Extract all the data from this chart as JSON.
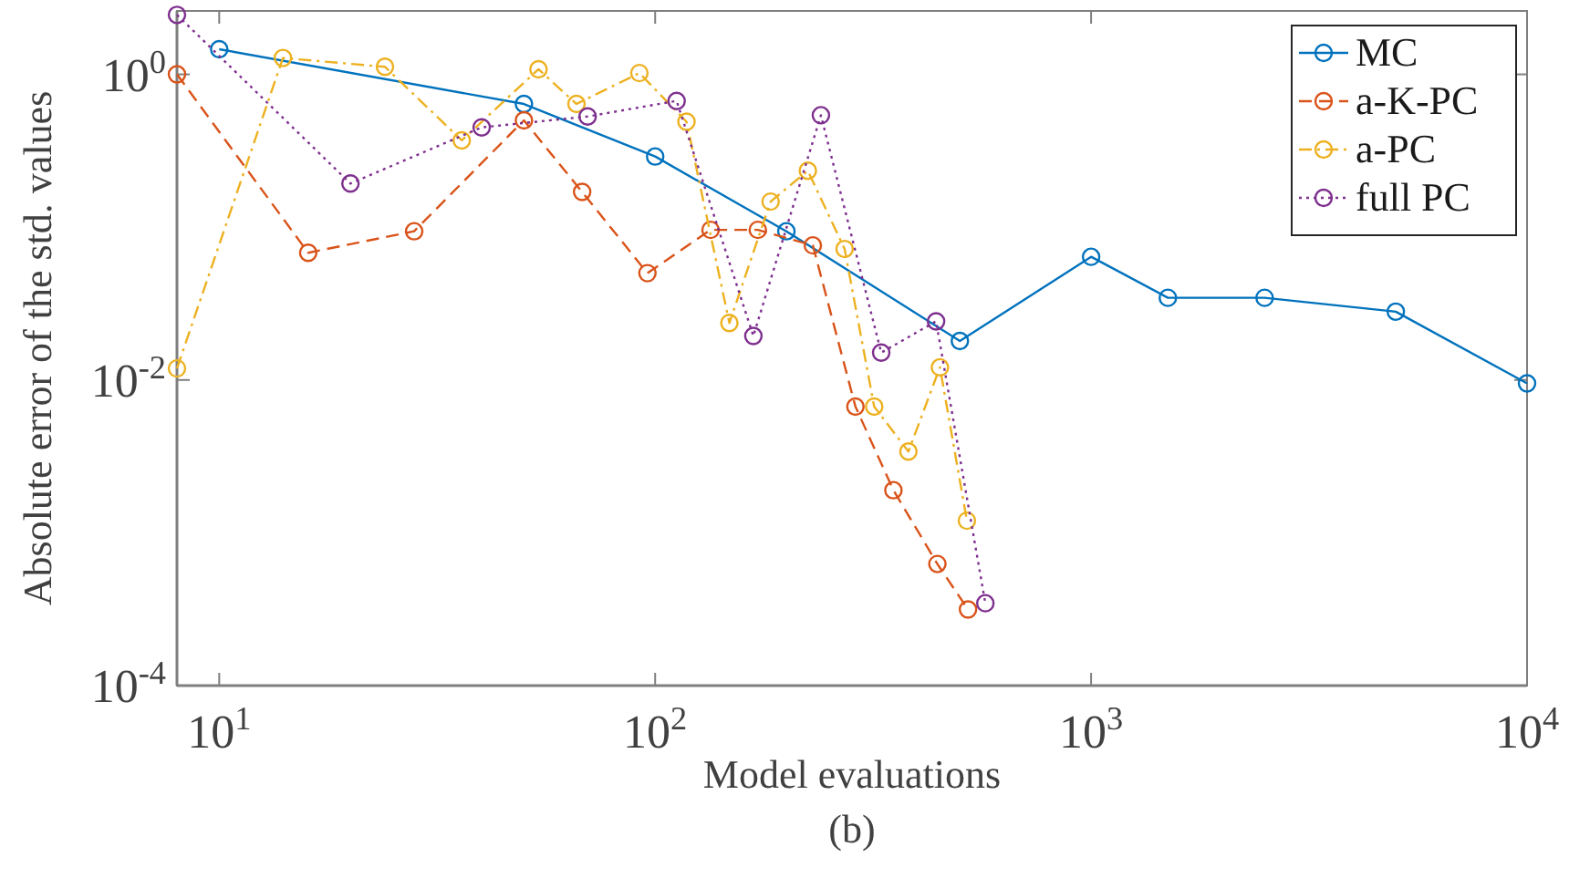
{
  "chart_data": {
    "type": "line",
    "xlabel": "Model evaluations",
    "ylabel": "Absolute error of the std. values",
    "annotations": [
      "(b)"
    ],
    "log": "xy",
    "xlim": [
      8,
      10000
    ],
    "ylim": [
      0.0001,
      2.6
    ],
    "xticks": [
      {
        "value": 10,
        "label": "10$^{1}$"
      },
      {
        "value": 100,
        "label": "10$^{2}$"
      },
      {
        "value": 1000,
        "label": "10$^{3}$"
      },
      {
        "value": 10000,
        "label": "10$^{4}$"
      }
    ],
    "yticks": [
      {
        "value": 0.0001,
        "label": "10$^{-4}$"
      },
      {
        "value": 0.01,
        "label": "10$^{-2}$"
      },
      {
        "value": 1,
        "label": "10$^{0}$"
      }
    ],
    "grid": false,
    "legend": "top right",
    "marker": "circle",
    "series": [
      {
        "name": "MC",
        "color": "#0072bd",
        "line_style": "solid",
        "x": [
          10,
          50,
          100,
          200,
          500,
          1000,
          1500,
          2500,
          5000,
          10000
        ],
        "values": [
          1.46,
          0.64,
          0.29,
          0.094,
          0.018,
          0.064,
          0.0345,
          0.0345,
          0.028,
          0.0095
        ]
      },
      {
        "name": "a-K-PC",
        "color": "#d95319",
        "line_style": "dashed",
        "x": [
          8,
          16,
          28,
          50,
          68,
          96,
          134,
          172,
          230,
          288,
          352,
          444,
          522
        ],
        "values": [
          1.0,
          0.068,
          0.094,
          0.5,
          0.17,
          0.05,
          0.096,
          0.096,
          0.076,
          0.0067,
          0.0019,
          0.000625,
          0.000315
        ]
      },
      {
        "name": "a-PC",
        "color": "#edb120",
        "line_style": "dashdot",
        "x": [
          8,
          14,
          24,
          36,
          54,
          66,
          92,
          118,
          148,
          184,
          224,
          272,
          318,
          381,
          450,
          519
        ],
        "values": [
          0.0119,
          1.28,
          1.12,
          0.37,
          1.08,
          0.64,
          1.02,
          0.49,
          0.0236,
          0.147,
          0.234,
          0.072,
          0.0067,
          0.0034,
          0.0121,
          0.0012
        ]
      },
      {
        "name": "full PC",
        "color": "#7e2f8e",
        "line_style": "dotted",
        "x": [
          8,
          20,
          40,
          70,
          112,
          168,
          240,
          330,
          441,
          572
        ],
        "values": [
          2.45,
          0.193,
          0.45,
          0.53,
          0.67,
          0.0194,
          0.54,
          0.0151,
          0.0242,
          0.000346
        ]
      }
    ]
  }
}
